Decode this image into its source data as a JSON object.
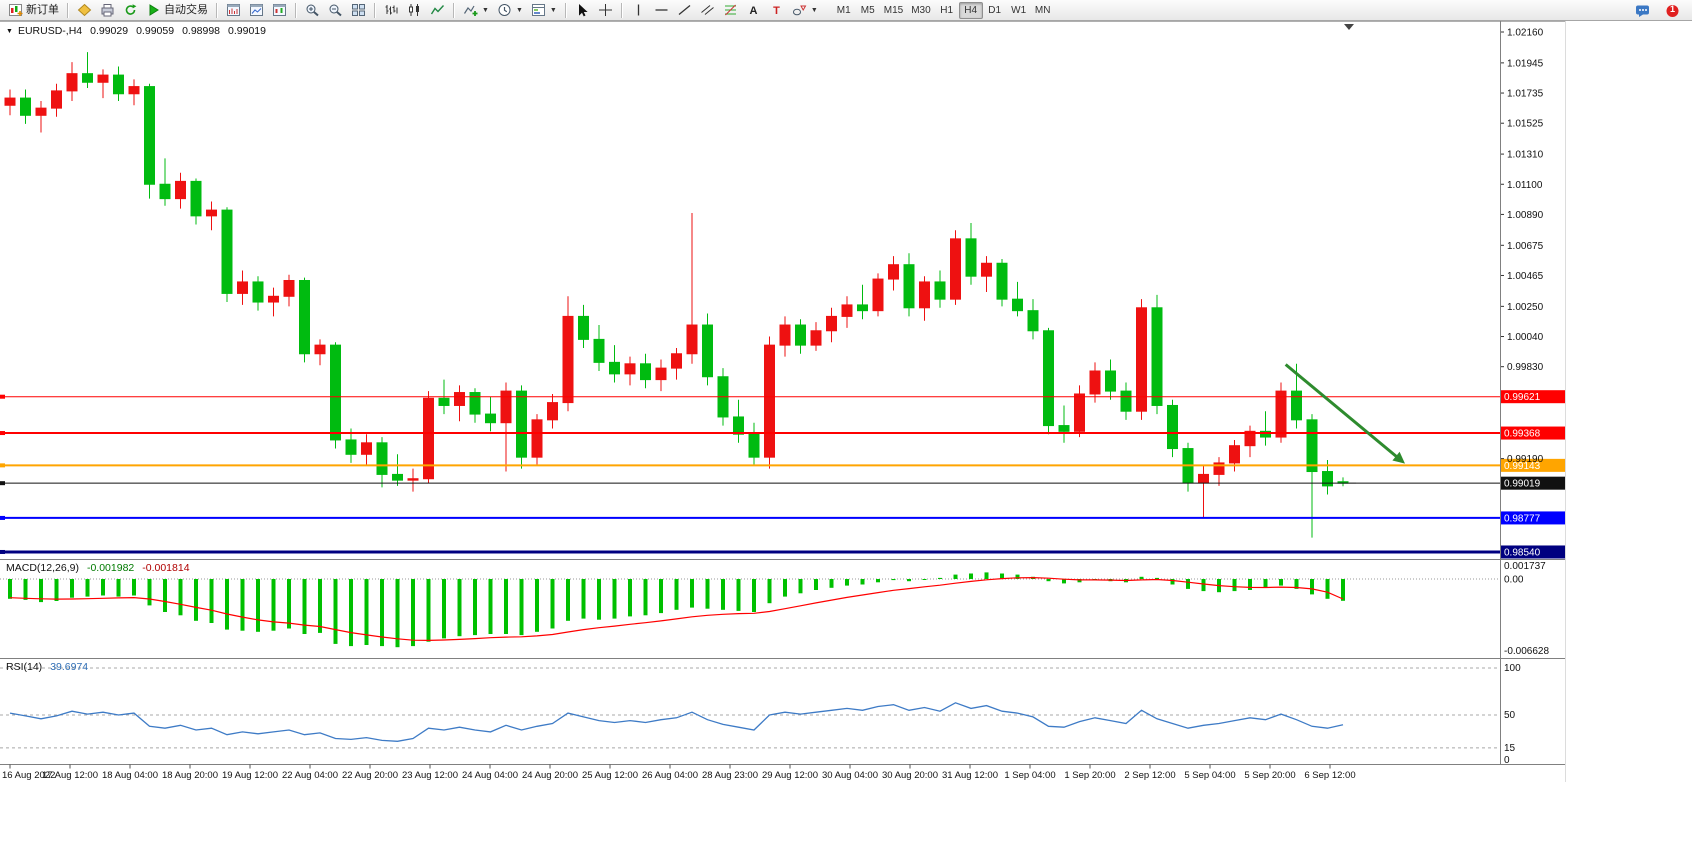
{
  "toolbar": {
    "groups": [
      {
        "name": "order",
        "items": [
          {
            "name": "new-order-button",
            "icon": "new-order",
            "label": "新订单"
          }
        ]
      },
      {
        "name": "misc",
        "items": [
          {
            "name": "alerts-button",
            "icon": "alert"
          },
          {
            "name": "print-button",
            "icon": "print"
          },
          {
            "name": "refresh-button",
            "icon": "refresh"
          },
          {
            "name": "auto-trading-button",
            "icon": "autotrade",
            "label": "自动交易"
          }
        ]
      },
      {
        "name": "windows",
        "items": [
          {
            "name": "new-chart-button",
            "icon": "chart-window-bars"
          },
          {
            "name": "profiles-button",
            "icon": "chart-window-line"
          },
          {
            "name": "chart-shift-button",
            "icon": "chart-window-candles"
          }
        ]
      },
      {
        "name": "zoom",
        "items": [
          {
            "name": "zoom-in-button",
            "icon": "zoom-in"
          },
          {
            "name": "zoom-out-button",
            "icon": "zoom-out"
          },
          {
            "name": "tile-windows-button",
            "icon": "tile"
          }
        ]
      },
      {
        "name": "chart-type",
        "items": [
          {
            "name": "bar-chart-button",
            "icon": "bars"
          },
          {
            "name": "candlestick-chart-button",
            "icon": "candles"
          },
          {
            "name": "line-chart-button",
            "icon": "line"
          }
        ]
      },
      {
        "name": "tools",
        "items": [
          {
            "name": "indicators-button",
            "icon": "indicators",
            "dropdown": true
          },
          {
            "name": "periods-button",
            "icon": "clock",
            "dropdown": true
          },
          {
            "name": "templates-button",
            "icon": "template",
            "dropdown": true
          }
        ]
      },
      {
        "name": "pointer",
        "items": [
          {
            "name": "cursor-button",
            "icon": "cursor"
          },
          {
            "name": "crosshair-button",
            "icon": "crosshair"
          }
        ]
      },
      {
        "name": "draw",
        "items": [
          {
            "name": "vertical-line-button",
            "icon": "vline"
          },
          {
            "name": "horizontal-line-button",
            "icon": "hline"
          },
          {
            "name": "trendline-button",
            "icon": "tline"
          },
          {
            "name": "channel-button",
            "icon": "channel"
          },
          {
            "name": "fibonacci-button",
            "icon": "fibo"
          },
          {
            "name": "text-button",
            "icon": "text"
          },
          {
            "name": "label-button",
            "icon": "label"
          },
          {
            "name": "shapes-button",
            "icon": "shapes",
            "dropdown": true
          }
        ]
      }
    ],
    "timeframes": {
      "items": [
        "M1",
        "M5",
        "M15",
        "M30",
        "H1",
        "H4",
        "D1",
        "W1",
        "MN"
      ],
      "active": "H4"
    },
    "right": {
      "notification_count": "1"
    }
  },
  "symbol_bar": {
    "collapse_icon": "▼",
    "title": "EURUSD-,H4",
    "open": "0.99029",
    "high": "0.99059",
    "low": "0.98998",
    "close": "0.99019"
  },
  "indicators": {
    "macd": {
      "label": "MACD(12,26,9)",
      "value_main": "-0.001982",
      "value_signal": "-0.001814",
      "axis_labels": [
        "0.001737",
        "0.00",
        "-0.006628"
      ],
      "color_hist": "#00C000",
      "color_signal": "#FF0000"
    },
    "rsi": {
      "label": "RSI(14)",
      "value": "39.6974",
      "axis_labels": [
        "100",
        "50",
        "15",
        "0"
      ],
      "levels": [
        100,
        50,
        15
      ],
      "color": "#3E7BC6"
    }
  },
  "chart_data": {
    "type": "candlestick",
    "symbol": "EURUSD-",
    "timeframe": "H4",
    "title": "EURUSD-,H4  0.99029 0.99059 0.98998 0.99019",
    "up_color": "#EE1111",
    "down_color": "#00BB10",
    "price_axis_labels": [
      1.0216,
      1.01945,
      1.01735,
      1.01525,
      1.0131,
      1.011,
      1.0089,
      1.00675,
      1.00465,
      1.0025,
      1.0004,
      0.9983,
      0.9919
    ],
    "price_range": {
      "top": 1.0216,
      "bottom": 0.9854
    },
    "candles": [
      [
        1.0165,
        1.0176,
        1.0158,
        1.017
      ],
      [
        1.017,
        1.0176,
        1.0152,
        1.0158
      ],
      [
        1.0158,
        1.0168,
        1.0146,
        1.0163
      ],
      [
        1.0163,
        1.018,
        1.0157,
        1.0175
      ],
      [
        1.0175,
        1.0195,
        1.0168,
        1.0187
      ],
      [
        1.0187,
        1.0202,
        1.0177,
        1.0181
      ],
      [
        1.0181,
        1.019,
        1.017,
        1.0186
      ],
      [
        1.0186,
        1.0192,
        1.0168,
        1.0173
      ],
      [
        1.0173,
        1.0183,
        1.0165,
        1.0178
      ],
      [
        1.0178,
        1.018,
        1.01,
        1.011
      ],
      [
        1.011,
        1.0128,
        1.0095,
        1.01
      ],
      [
        1.01,
        1.0118,
        1.0093,
        1.0112
      ],
      [
        1.0112,
        1.0114,
        1.0082,
        1.0088
      ],
      [
        1.0088,
        1.0098,
        1.0078,
        1.0092
      ],
      [
        1.0092,
        1.0094,
        1.0028,
        1.0034
      ],
      [
        1.0034,
        1.005,
        1.0026,
        1.0042
      ],
      [
        1.0042,
        1.0046,
        1.0022,
        1.0028
      ],
      [
        1.0028,
        1.0038,
        1.0018,
        1.0032
      ],
      [
        1.0032,
        1.0047,
        1.0025,
        1.0043
      ],
      [
        1.0043,
        1.0045,
        0.9986,
        0.9992
      ],
      [
        0.9992,
        1.0002,
        0.9984,
        0.9998
      ],
      [
        0.9998,
        1.0,
        0.9926,
        0.9932
      ],
      [
        0.9932,
        0.994,
        0.9916,
        0.9922
      ],
      [
        0.9922,
        0.9936,
        0.9914,
        0.993
      ],
      [
        0.993,
        0.9934,
        0.9899,
        0.9908
      ],
      [
        0.9908,
        0.9922,
        0.99,
        0.9904
      ],
      [
        0.9904,
        0.9912,
        0.9896,
        0.9905
      ],
      [
        0.9905,
        0.9966,
        0.9902,
        0.9961
      ],
      [
        0.9961,
        0.9974,
        0.995,
        0.9956
      ],
      [
        0.9956,
        0.997,
        0.9945,
        0.9965
      ],
      [
        0.9965,
        0.9968,
        0.9944,
        0.995
      ],
      [
        0.995,
        0.9962,
        0.9938,
        0.9944
      ],
      [
        0.9944,
        0.9972,
        0.991,
        0.9966
      ],
      [
        0.9966,
        0.997,
        0.9912,
        0.992
      ],
      [
        0.992,
        0.995,
        0.9914,
        0.9946
      ],
      [
        0.9946,
        0.9964,
        0.994,
        0.9958
      ],
      [
        0.9958,
        1.0032,
        0.9952,
        1.0018
      ],
      [
        1.0018,
        1.0026,
        0.9996,
        1.0002
      ],
      [
        1.0002,
        1.0012,
        0.998,
        0.9986
      ],
      [
        0.9986,
        0.9998,
        0.9972,
        0.9978
      ],
      [
        0.9978,
        0.999,
        0.997,
        0.9985
      ],
      [
        0.9985,
        0.9992,
        0.9968,
        0.9974
      ],
      [
        0.9974,
        0.9988,
        0.9966,
        0.9982
      ],
      [
        0.9982,
        0.9996,
        0.9974,
        0.9992
      ],
      [
        0.9992,
        1.009,
        0.9985,
        1.0012
      ],
      [
        1.0012,
        1.002,
        0.997,
        0.9976
      ],
      [
        0.9976,
        0.9982,
        0.9942,
        0.9948
      ],
      [
        0.9948,
        0.996,
        0.993,
        0.9936
      ],
      [
        0.9936,
        0.9944,
        0.9914,
        0.992
      ],
      [
        0.992,
        1.0004,
        0.9912,
        0.9998
      ],
      [
        0.9998,
        1.0018,
        0.999,
        1.0012
      ],
      [
        1.0012,
        1.0016,
        0.9992,
        0.9998
      ],
      [
        0.9998,
        1.0014,
        0.9994,
        1.0008
      ],
      [
        1.0008,
        1.0024,
        1.0,
        1.0018
      ],
      [
        1.0018,
        1.0032,
        1.001,
        1.0026
      ],
      [
        1.0026,
        1.004,
        1.0016,
        1.0022
      ],
      [
        1.0022,
        1.0048,
        1.0018,
        1.0044
      ],
      [
        1.0044,
        1.006,
        1.0036,
        1.0054
      ],
      [
        1.0054,
        1.0062,
        1.0018,
        1.0024
      ],
      [
        1.0024,
        1.0046,
        1.0015,
        1.0042
      ],
      [
        1.0042,
        1.005,
        1.0024,
        1.003
      ],
      [
        1.003,
        1.0078,
        1.0026,
        1.0072
      ],
      [
        1.0072,
        1.0083,
        1.004,
        1.0046
      ],
      [
        1.0046,
        1.006,
        1.0035,
        1.0055
      ],
      [
        1.0055,
        1.0058,
        1.0025,
        1.003
      ],
      [
        1.003,
        1.0042,
        1.0018,
        1.0022
      ],
      [
        1.0022,
        1.003,
        1.0002,
        1.0008
      ],
      [
        1.0008,
        1.001,
        0.9936,
        0.9942
      ],
      [
        0.9942,
        0.9956,
        0.993,
        0.9938
      ],
      [
        0.9938,
        0.997,
        0.9934,
        0.9964
      ],
      [
        0.9964,
        0.9986,
        0.9958,
        0.998
      ],
      [
        0.998,
        0.9988,
        0.996,
        0.9966
      ],
      [
        0.9966,
        0.9972,
        0.9946,
        0.9952
      ],
      [
        0.9952,
        1.003,
        0.9946,
        1.0024
      ],
      [
        1.0024,
        1.0033,
        0.995,
        0.9956
      ],
      [
        0.9956,
        0.996,
        0.992,
        0.9926
      ],
      [
        0.9926,
        0.993,
        0.9896,
        0.9902
      ],
      [
        0.9902,
        0.9914,
        0.9878,
        0.9908
      ],
      [
        0.9908,
        0.992,
        0.99,
        0.9916
      ],
      [
        0.9916,
        0.9932,
        0.991,
        0.9928
      ],
      [
        0.9928,
        0.9942,
        0.992,
        0.9938
      ],
      [
        0.9938,
        0.9952,
        0.9928,
        0.9934
      ],
      [
        0.9934,
        0.9972,
        0.993,
        0.9966
      ],
      [
        0.9966,
        0.9985,
        0.994,
        0.9946
      ],
      [
        0.9946,
        0.995,
        0.9864,
        0.991
      ],
      [
        0.991,
        0.9918,
        0.9894,
        0.99
      ],
      [
        0.99029,
        0.99059,
        0.98998,
        0.99019
      ]
    ],
    "macd_histogram_x1e4": [
      -18,
      -19,
      -21,
      -20,
      -17,
      -16,
      -15,
      -16,
      -15,
      -24,
      -30,
      -33,
      -38,
      -40,
      -46,
      -47,
      -48,
      -47,
      -45,
      -50,
      -49,
      -59,
      -61,
      -60,
      -61,
      -62,
      -61,
      -57,
      -54,
      -52,
      -51,
      -50,
      -50,
      -51,
      -48,
      -45,
      -38,
      -36,
      -37,
      -36,
      -34,
      -33,
      -31,
      -28,
      -26,
      -27,
      -28,
      -29,
      -30,
      -22,
      -16,
      -13,
      -10,
      -8,
      -6,
      -5,
      -3,
      -1,
      -2,
      0,
      1,
      4,
      5,
      6,
      5,
      4,
      2,
      -2,
      -4,
      -3,
      -1,
      -2,
      -3,
      2,
      1,
      -5,
      -9,
      -11,
      -12,
      -11,
      -10,
      -8,
      -6,
      -9,
      -14,
      -18,
      -19.82
    ],
    "macd_signal_x1e4": [
      -17,
      -17.5,
      -18,
      -18.3,
      -18.2,
      -17.9,
      -17.5,
      -17.2,
      -16.9,
      -18.2,
      -20.5,
      -23,
      -25.8,
      -28.4,
      -31.8,
      -34.6,
      -37.2,
      -39,
      -40.1,
      -41.9,
      -43.2,
      -46,
      -48.7,
      -50.8,
      -52.7,
      -54.4,
      -55.6,
      -55.8,
      -55.5,
      -54.9,
      -54.2,
      -53.4,
      -52.8,
      -52.5,
      -51.7,
      -50.5,
      -48.2,
      -46,
      -44.3,
      -42.8,
      -41.2,
      -39.7,
      -38.1,
      -36.3,
      -34.4,
      -33,
      -32.1,
      -31.5,
      -31.2,
      -29.5,
      -27,
      -24.4,
      -21.7,
      -19.2,
      -16.7,
      -14.5,
      -12.4,
      -10.3,
      -8.7,
      -7.1,
      -5.6,
      -3.8,
      -2.2,
      -0.7,
      0.4,
      1.1,
      1.3,
      0.7,
      -0.2,
      -0.8,
      -0.8,
      -1,
      -1.4,
      -0.8,
      -0.5,
      -1.4,
      -2.9,
      -4.5,
      -6,
      -7,
      -7.6,
      -7.7,
      -7.4,
      -7.7,
      -9,
      -12,
      -18.14
    ],
    "rsi_values": [
      52,
      49,
      46,
      49,
      54,
      51,
      53,
      50,
      52,
      38,
      36,
      39,
      34,
      36,
      29,
      32,
      30,
      32,
      34,
      29,
      31,
      25,
      24,
      26,
      23,
      22,
      25,
      36,
      34,
      37,
      34,
      32,
      39,
      34,
      38,
      41,
      52,
      48,
      44,
      42,
      44,
      42,
      45,
      47,
      53,
      45,
      40,
      37,
      34,
      50,
      53,
      51,
      53,
      55,
      57,
      55,
      59,
      61,
      55,
      58,
      54,
      63,
      57,
      60,
      54,
      52,
      48,
      38,
      37,
      43,
      47,
      44,
      41,
      55,
      46,
      41,
      36,
      39,
      41,
      44,
      47,
      45,
      51,
      45,
      38,
      36,
      39.6974
    ],
    "date_labels": [
      "16 Aug 2022",
      "17 Aug 12:00",
      "18 Aug 04:00",
      "18 Aug 20:00",
      "19 Aug 12:00",
      "22 Aug 04:00",
      "22 Aug 20:00",
      "23 Aug 12:00",
      "24 Aug 04:00",
      "24 Aug 20:00",
      "25 Aug 12:00",
      "26 Aug 04:00",
      "28 Aug 23:00",
      "29 Aug 12:00",
      "30 Aug 04:00",
      "30 Aug 20:00",
      "31 Aug 12:00",
      "1 Sep 04:00",
      "1 Sep 20:00",
      "2 Sep 12:00",
      "5 Sep 04:00",
      "5 Sep 20:00",
      "6 Sep 12:00"
    ],
    "hlines": [
      {
        "price": 0.99621,
        "color": "#FF0000",
        "width": 1
      },
      {
        "price": 0.99368,
        "color": "#FF0000",
        "width": 2
      },
      {
        "price": 0.99143,
        "color": "#FFA500",
        "width": 2
      },
      {
        "price": 0.99019,
        "color": "#111111",
        "width": 1,
        "is_current_price": true
      },
      {
        "price": 0.98777,
        "color": "#0000FF",
        "width": 2
      },
      {
        "price": 0.9854,
        "color": "#000080",
        "width": 3
      }
    ],
    "current_price": 0.99019,
    "arrow": {
      "from_bar": 82.3,
      "from_price": 0.99845,
      "to_bar": 90,
      "to_price": 0.99155,
      "color": "#2E8B2E"
    }
  }
}
